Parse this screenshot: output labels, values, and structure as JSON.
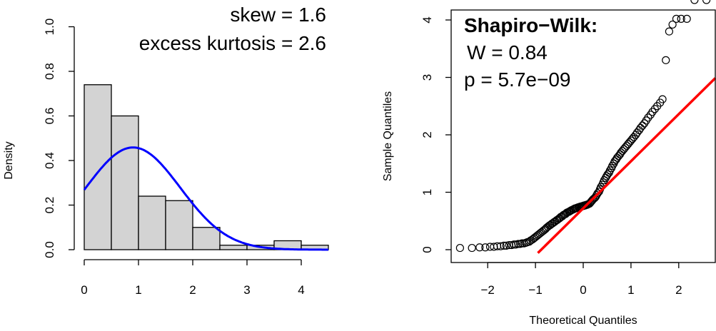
{
  "chart_data": [
    {
      "type": "bar",
      "subtype": "histogram",
      "ylabel": "Density",
      "xlabel": "",
      "xlim": [
        0,
        4.5
      ],
      "ylim": [
        0,
        1.0
      ],
      "bin_edges": [
        0,
        0.5,
        1,
        1.5,
        2,
        2.5,
        3,
        3.5,
        4,
        4.5
      ],
      "values": [
        0.74,
        0.6,
        0.24,
        0.22,
        0.1,
        0.02,
        0.02,
        0.04,
        0.02
      ],
      "x_ticks": [
        "0",
        "1",
        "2",
        "3",
        "4"
      ],
      "y_ticks": [
        "0.0",
        "0.2",
        "0.4",
        "0.6",
        "0.8",
        "1.0"
      ],
      "bar_color": "#d3d3d3",
      "density_curve": {
        "type": "normal",
        "mean": 0.9,
        "sd": 0.87,
        "color": "#0000ff"
      },
      "annotations": [
        "skew = 1.6",
        "excess kurtosis = 2.6"
      ]
    },
    {
      "type": "scatter",
      "subtype": "qq-plot",
      "xlabel": "Theoretical Quantiles",
      "ylabel": "Sample Quantiles",
      "xlim": [
        -2.6,
        2.6
      ],
      "ylim": [
        0,
        4
      ],
      "x_ticks": [
        "−2",
        "−1",
        "0",
        "1",
        "2"
      ],
      "y_ticks": [
        "0",
        "1",
        "2",
        "3",
        "4"
      ],
      "points_x": [
        -2.58,
        -2.33,
        -2.17,
        -2.05,
        -1.95,
        -1.87,
        -1.8,
        -1.73,
        -1.66,
        -1.61,
        -1.55,
        -1.5,
        -1.45,
        -1.41,
        -1.36,
        -1.32,
        -1.28,
        -1.24,
        -1.2,
        -1.17,
        -1.13,
        -1.1,
        -1.06,
        -1.03,
        -1.0,
        -0.97,
        -0.94,
        -0.91,
        -0.88,
        -0.85,
        -0.82,
        -0.79,
        -0.77,
        -0.74,
        -0.71,
        -0.69,
        -0.66,
        -0.64,
        -0.61,
        -0.59,
        -0.56,
        -0.54,
        -0.51,
        -0.49,
        -0.47,
        -0.44,
        -0.42,
        -0.4,
        -0.37,
        -0.35,
        -0.33,
        -0.3,
        -0.28,
        -0.26,
        -0.24,
        -0.21,
        -0.19,
        -0.17,
        -0.15,
        -0.13,
        -0.1,
        -0.08,
        -0.06,
        -0.04,
        -0.02,
        0.0,
        0.02,
        0.04,
        0.06,
        0.08,
        0.1,
        0.13,
        0.15,
        0.17,
        0.19,
        0.21,
        0.24,
        0.26,
        0.28,
        0.3,
        0.33,
        0.35,
        0.37,
        0.4,
        0.42,
        0.44,
        0.47,
        0.49,
        0.51,
        0.54,
        0.56,
        0.59,
        0.61,
        0.64,
        0.66,
        0.69,
        0.71,
        0.74,
        0.77,
        0.79,
        0.82,
        0.85,
        0.88,
        0.91,
        0.94,
        0.97,
        1.0,
        1.03,
        1.06,
        1.1,
        1.13,
        1.17,
        1.2,
        1.24,
        1.28,
        1.32,
        1.36,
        1.41,
        1.45,
        1.5,
        1.55,
        1.61,
        1.66,
        1.73,
        1.8,
        1.87,
        1.95,
        2.05,
        2.17,
        2.33,
        2.58
      ],
      "points_y": [
        0.03,
        0.03,
        0.04,
        0.04,
        0.05,
        0.05,
        0.06,
        0.06,
        0.07,
        0.07,
        0.08,
        0.08,
        0.09,
        0.09,
        0.1,
        0.1,
        0.11,
        0.11,
        0.12,
        0.13,
        0.14,
        0.16,
        0.18,
        0.2,
        0.22,
        0.24,
        0.26,
        0.28,
        0.3,
        0.32,
        0.34,
        0.36,
        0.38,
        0.4,
        0.42,
        0.43,
        0.45,
        0.46,
        0.48,
        0.49,
        0.51,
        0.52,
        0.54,
        0.55,
        0.57,
        0.58,
        0.6,
        0.61,
        0.62,
        0.64,
        0.65,
        0.66,
        0.67,
        0.68,
        0.69,
        0.7,
        0.71,
        0.72,
        0.72,
        0.73,
        0.74,
        0.74,
        0.75,
        0.75,
        0.76,
        0.76,
        0.77,
        0.77,
        0.78,
        0.78,
        0.79,
        0.8,
        0.82,
        0.84,
        0.86,
        0.88,
        0.9,
        0.92,
        0.95,
        0.98,
        1.01,
        1.05,
        1.09,
        1.13,
        1.17,
        1.21,
        1.25,
        1.28,
        1.31,
        1.34,
        1.38,
        1.42,
        1.46,
        1.5,
        1.54,
        1.57,
        1.6,
        1.63,
        1.66,
        1.69,
        1.72,
        1.75,
        1.78,
        1.81,
        1.84,
        1.87,
        1.9,
        1.93,
        1.96,
        2.0,
        2.04,
        2.08,
        2.12,
        2.16,
        2.2,
        2.25,
        2.3,
        2.35,
        2.4,
        2.45,
        2.5,
        2.56,
        2.62,
        3.3,
        3.8,
        3.92,
        4.02,
        4.02,
        4.02
      ],
      "reference_line": {
        "intercept": 0.73,
        "slope": 0.83,
        "color": "#ff0000"
      },
      "annotation_title": "Shapiro−Wilk:",
      "annotations": [
        "W = 0.84",
        "p = 5.7e−09"
      ]
    }
  ]
}
